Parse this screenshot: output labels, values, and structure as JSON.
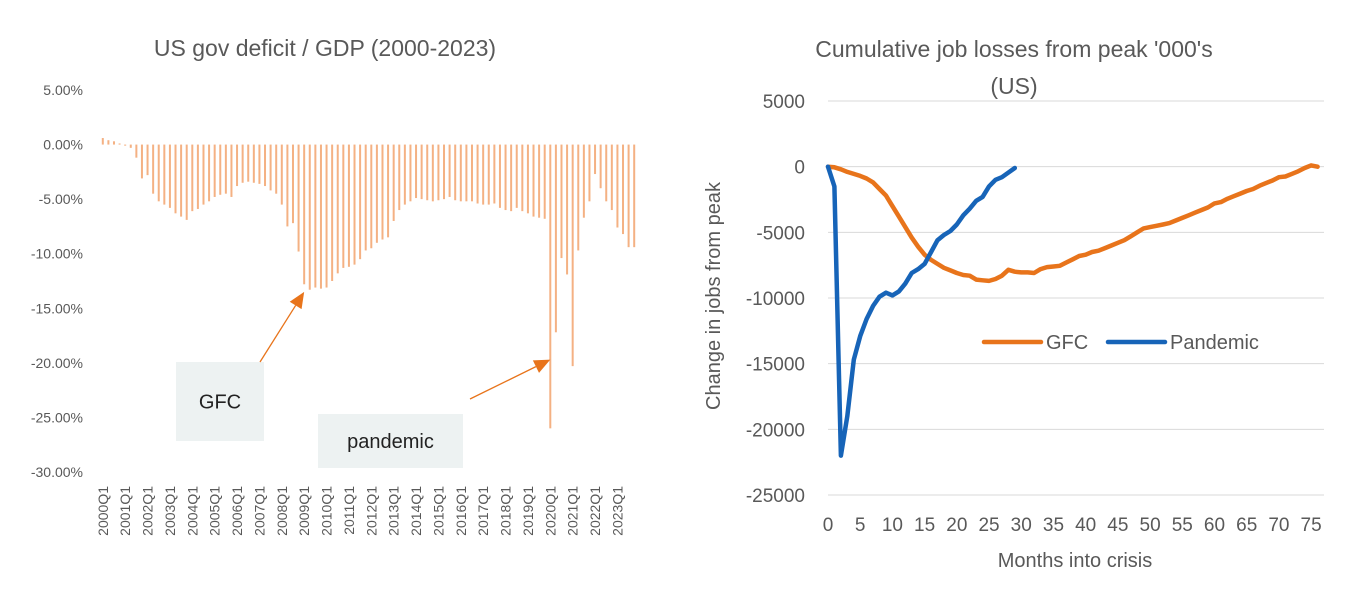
{
  "chart_data": [
    {
      "type": "bar",
      "title": "US gov deficit / GDP (2000-2023)",
      "xlabel": "",
      "ylabel": "",
      "ylim": [
        -0.3,
        0.05
      ],
      "yticks": [
        "5.00%",
        "0.00%",
        "-5.00%",
        "-10.00%",
        "-15.00%",
        "-20.00%",
        "-25.00%",
        "-30.00%"
      ],
      "grid": false,
      "bar_color": "#F4B183",
      "categories": [
        "2000Q1",
        "2000Q2",
        "2000Q3",
        "2000Q4",
        "2001Q1",
        "2001Q2",
        "2001Q3",
        "2001Q4",
        "2002Q1",
        "2002Q2",
        "2002Q3",
        "2002Q4",
        "2003Q1",
        "2003Q2",
        "2003Q3",
        "2003Q4",
        "2004Q1",
        "2004Q2",
        "2004Q3",
        "2004Q4",
        "2005Q1",
        "2005Q2",
        "2005Q3",
        "2005Q4",
        "2006Q1",
        "2006Q2",
        "2006Q3",
        "2006Q4",
        "2007Q1",
        "2007Q2",
        "2007Q3",
        "2007Q4",
        "2008Q1",
        "2008Q2",
        "2008Q3",
        "2008Q4",
        "2009Q1",
        "2009Q2",
        "2009Q3",
        "2009Q4",
        "2010Q1",
        "2010Q2",
        "2010Q3",
        "2010Q4",
        "2011Q1",
        "2011Q2",
        "2011Q3",
        "2011Q4",
        "2012Q1",
        "2012Q2",
        "2012Q3",
        "2012Q4",
        "2013Q1",
        "2013Q2",
        "2013Q3",
        "2013Q4",
        "2014Q1",
        "2014Q2",
        "2014Q3",
        "2014Q4",
        "2015Q1",
        "2015Q2",
        "2015Q3",
        "2015Q4",
        "2016Q1",
        "2016Q2",
        "2016Q3",
        "2016Q4",
        "2017Q1",
        "2017Q2",
        "2017Q3",
        "2017Q4",
        "2018Q1",
        "2018Q2",
        "2018Q3",
        "2018Q4",
        "2019Q1",
        "2019Q2",
        "2019Q3",
        "2019Q4",
        "2020Q1",
        "2020Q2",
        "2020Q3",
        "2020Q4",
        "2021Q1",
        "2021Q2",
        "2021Q3",
        "2021Q4",
        "2022Q1",
        "2022Q2",
        "2022Q3",
        "2022Q4",
        "2023Q1",
        "2023Q2",
        "2023Q3",
        "2023Q4"
      ],
      "tick_labels": [
        "2000Q1",
        "2001Q1",
        "2002Q1",
        "2003Q1",
        "2004Q1",
        "2005Q1",
        "2006Q1",
        "2007Q1",
        "2008Q1",
        "2009Q1",
        "2010Q1",
        "2011Q1",
        "2012Q1",
        "2013Q1",
        "2014Q1",
        "2015Q1",
        "2016Q1",
        "2017Q1",
        "2018Q1",
        "2019Q1",
        "2020Q1",
        "2021Q1",
        "2022Q1",
        "2023Q1"
      ],
      "values": [
        0.006,
        0.004,
        0.003,
        0.001,
        -0.001,
        -0.003,
        -0.012,
        -0.031,
        -0.028,
        -0.045,
        -0.052,
        -0.055,
        -0.058,
        -0.063,
        -0.066,
        -0.069,
        -0.061,
        -0.059,
        -0.055,
        -0.052,
        -0.048,
        -0.046,
        -0.045,
        -0.048,
        -0.038,
        -0.035,
        -0.034,
        -0.035,
        -0.036,
        -0.038,
        -0.042,
        -0.045,
        -0.055,
        -0.075,
        -0.072,
        -0.098,
        -0.128,
        -0.133,
        -0.131,
        -0.132,
        -0.131,
        -0.125,
        -0.118,
        -0.113,
        -0.112,
        -0.11,
        -0.105,
        -0.097,
        -0.095,
        -0.09,
        -0.087,
        -0.085,
        -0.07,
        -0.06,
        -0.055,
        -0.052,
        -0.049,
        -0.05,
        -0.051,
        -0.052,
        -0.051,
        -0.05,
        -0.048,
        -0.051,
        -0.052,
        -0.052,
        -0.052,
        -0.054,
        -0.055,
        -0.055,
        -0.054,
        -0.058,
        -0.06,
        -0.061,
        -0.058,
        -0.061,
        -0.063,
        -0.066,
        -0.067,
        -0.068,
        -0.26,
        -0.172,
        -0.104,
        -0.119,
        -0.203,
        -0.097,
        -0.067,
        -0.052,
        -0.027,
        -0.04,
        -0.052,
        -0.06,
        -0.076,
        -0.082,
        -0.094,
        -0.094
      ],
      "annotations": [
        {
          "label": "GFC",
          "target_category": "2009Q1",
          "target_value": -0.135
        },
        {
          "label": "pandemic",
          "target_category": "2020Q1",
          "target_value": -0.197
        }
      ]
    },
    {
      "type": "line",
      "title": "Cumulative job losses from peak '000's (US)",
      "title_lines": [
        "Cumulative job losses from peak '000's",
        "(US)"
      ],
      "xlabel": "Months into crisis",
      "ylabel": "Change in jobs from peak",
      "xlim": [
        0,
        77
      ],
      "ylim": [
        -25000,
        5000
      ],
      "xticks": [
        0,
        5,
        10,
        15,
        20,
        25,
        30,
        35,
        40,
        45,
        50,
        55,
        60,
        65,
        70,
        75
      ],
      "yticks": [
        5000,
        0,
        -5000,
        -10000,
        -15000,
        -20000,
        -25000
      ],
      "grid": true,
      "legend_position": "center-right",
      "series": [
        {
          "name": "GFC",
          "color": "#E8741B",
          "points": [
            [
              0,
              0
            ],
            [
              1,
              -50
            ],
            [
              2,
              -200
            ],
            [
              3,
              -400
            ],
            [
              4,
              -550
            ],
            [
              5,
              -700
            ],
            [
              6,
              -900
            ],
            [
              7,
              -1200
            ],
            [
              8,
              -1700
            ],
            [
              9,
              -2200
            ],
            [
              10,
              -3000
            ],
            [
              11,
              -3800
            ],
            [
              12,
              -4600
            ],
            [
              13,
              -5400
            ],
            [
              14,
              -6100
            ],
            [
              15,
              -6700
            ],
            [
              16,
              -7100
            ],
            [
              17,
              -7400
            ],
            [
              18,
              -7700
            ],
            [
              19,
              -7900
            ],
            [
              20,
              -8100
            ],
            [
              21,
              -8250
            ],
            [
              22,
              -8300
            ],
            [
              23,
              -8600
            ],
            [
              24,
              -8650
            ],
            [
              25,
              -8700
            ],
            [
              26,
              -8550
            ],
            [
              27,
              -8300
            ],
            [
              28,
              -7850
            ],
            [
              29,
              -8000
            ],
            [
              30,
              -8050
            ],
            [
              31,
              -8050
            ],
            [
              32,
              -8100
            ],
            [
              33,
              -7800
            ],
            [
              34,
              -7650
            ],
            [
              35,
              -7600
            ],
            [
              36,
              -7550
            ],
            [
              37,
              -7300
            ],
            [
              38,
              -7050
            ],
            [
              39,
              -6800
            ],
            [
              40,
              -6700
            ],
            [
              41,
              -6500
            ],
            [
              42,
              -6400
            ],
            [
              43,
              -6200
            ],
            [
              44,
              -6000
            ],
            [
              45,
              -5800
            ],
            [
              46,
              -5600
            ],
            [
              47,
              -5300
            ],
            [
              48,
              -5000
            ],
            [
              49,
              -4700
            ],
            [
              50,
              -4600
            ],
            [
              51,
              -4500
            ],
            [
              52,
              -4400
            ],
            [
              53,
              -4300
            ],
            [
              54,
              -4100
            ],
            [
              55,
              -3900
            ],
            [
              56,
              -3700
            ],
            [
              57,
              -3500
            ],
            [
              58,
              -3300
            ],
            [
              59,
              -3100
            ],
            [
              60,
              -2800
            ],
            [
              61,
              -2700
            ],
            [
              62,
              -2450
            ],
            [
              63,
              -2250
            ],
            [
              64,
              -2050
            ],
            [
              65,
              -1850
            ],
            [
              66,
              -1700
            ],
            [
              67,
              -1450
            ],
            [
              68,
              -1250
            ],
            [
              69,
              -1050
            ],
            [
              70,
              -800
            ],
            [
              71,
              -750
            ],
            [
              72,
              -550
            ],
            [
              73,
              -350
            ],
            [
              74,
              -100
            ],
            [
              75,
              100
            ],
            [
              76,
              0
            ]
          ]
        },
        {
          "name": "Pandemic",
          "color": "#1764B8",
          "points": [
            [
              0,
              0
            ],
            [
              1,
              -1500
            ],
            [
              2,
              -22000
            ],
            [
              3,
              -19000
            ],
            [
              4,
              -14700
            ],
            [
              5,
              -12900
            ],
            [
              6,
              -11600
            ],
            [
              7,
              -10600
            ],
            [
              8,
              -9900
            ],
            [
              9,
              -9600
            ],
            [
              10,
              -9800
            ],
            [
              11,
              -9500
            ],
            [
              12,
              -8900
            ],
            [
              13,
              -8100
            ],
            [
              14,
              -7800
            ],
            [
              15,
              -7400
            ],
            [
              16,
              -6500
            ],
            [
              17,
              -5600
            ],
            [
              18,
              -5200
            ],
            [
              19,
              -4900
            ],
            [
              20,
              -4400
            ],
            [
              21,
              -3700
            ],
            [
              22,
              -3200
            ],
            [
              23,
              -2600
            ],
            [
              24,
              -2300
            ],
            [
              25,
              -1500
            ],
            [
              26,
              -1000
            ],
            [
              27,
              -800
            ],
            [
              28,
              -450
            ],
            [
              29,
              -100
            ]
          ]
        }
      ]
    }
  ]
}
